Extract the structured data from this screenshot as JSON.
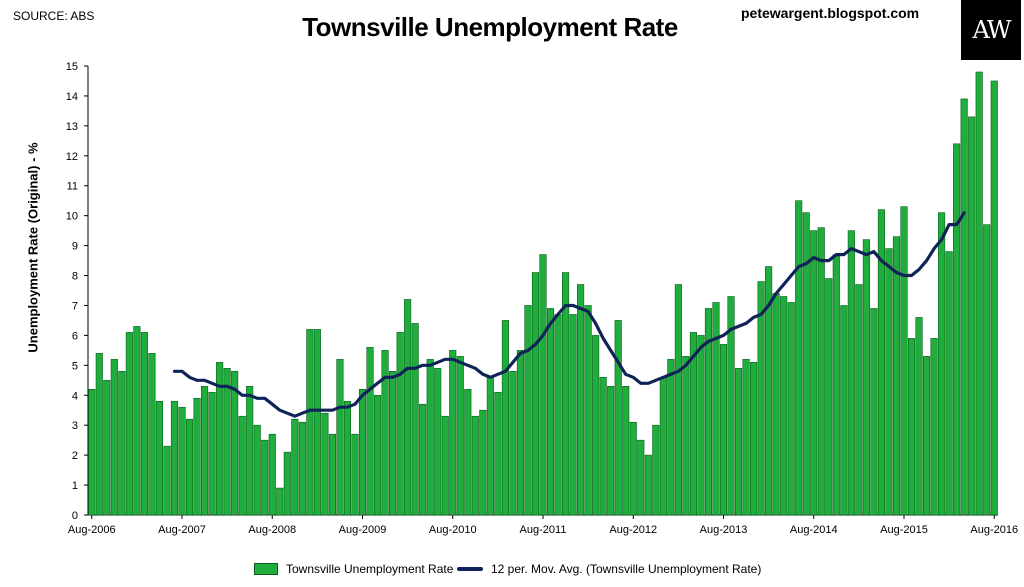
{
  "source": "SOURCE: ABS",
  "website": "petewargent.blogspot.com",
  "logo_text": "AW",
  "chart_data": {
    "type": "bar",
    "title": "Townsville Unemployment Rate",
    "ylabel": "Unemployment Rate (Original) - %",
    "xlabel": "",
    "ylim": [
      0,
      15
    ],
    "yticks": [
      0,
      1,
      2,
      3,
      4,
      5,
      6,
      7,
      8,
      9,
      10,
      11,
      12,
      13,
      14,
      15
    ],
    "xtick_labels": [
      "Aug-2006",
      "Aug-2007",
      "Aug-2008",
      "Aug-2009",
      "Aug-2010",
      "Aug-2011",
      "Aug-2012",
      "Aug-2013",
      "Aug-2014",
      "Aug-2015",
      "Aug-2016"
    ],
    "legend_position": "bottom",
    "grid": false,
    "colors": {
      "bars": "#1fad3c",
      "bar_edge": "#0b5e1f",
      "line": "#0f2358"
    },
    "series": [
      {
        "name": "Townsville Unemployment Rate",
        "type": "bar",
        "values": [
          4.2,
          5.4,
          4.5,
          5.2,
          4.8,
          6.1,
          6.3,
          6.1,
          5.4,
          3.8,
          2.3,
          3.8,
          3.6,
          3.2,
          3.9,
          4.3,
          4.1,
          5.1,
          4.9,
          4.8,
          3.3,
          4.3,
          3.0,
          2.5,
          2.7,
          0.9,
          2.1,
          3.2,
          3.1,
          6.2,
          6.2,
          3.4,
          2.7,
          5.2,
          3.8,
          2.7,
          4.2,
          5.6,
          4.0,
          5.5,
          4.8,
          6.1,
          7.2,
          6.4,
          3.7,
          5.2,
          4.9,
          3.3,
          5.5,
          5.3,
          4.2,
          3.3,
          3.5,
          4.6,
          4.1,
          6.5,
          4.8,
          5.5,
          7.0,
          8.1,
          8.7,
          6.9,
          6.7,
          8.1,
          6.7,
          7.7,
          7.0,
          6.0,
          4.6,
          4.3,
          6.5,
          4.3,
          3.1,
          2.5,
          2.0,
          3.0,
          4.6,
          5.2,
          7.7,
          5.3,
          6.1,
          6.0,
          6.9,
          7.1,
          5.7,
          7.3,
          4.9,
          5.2,
          5.1,
          7.8,
          8.3,
          7.4,
          7.3,
          7.1,
          10.5,
          10.1,
          9.5,
          9.6,
          7.9,
          8.7,
          7.0,
          9.5,
          7.7,
          9.2,
          6.9,
          10.2,
          8.9,
          9.3,
          10.3,
          5.9,
          6.6,
          5.3,
          5.9,
          10.1,
          8.8,
          12.4,
          13.9,
          13.3,
          14.8,
          9.7,
          14.5
        ],
        "x_start": "Aug-2006",
        "x_end": "Aug-2016",
        "x_step": "month"
      },
      {
        "name": "12 per. Mov. Avg. (Townsville Unemployment Rate)",
        "type": "line",
        "start_index": 11,
        "values": [
          4.8,
          4.8,
          4.6,
          4.5,
          4.5,
          4.4,
          4.3,
          4.3,
          4.2,
          4.0,
          4.0,
          3.9,
          3.9,
          3.7,
          3.5,
          3.4,
          3.3,
          3.4,
          3.5,
          3.5,
          3.5,
          3.5,
          3.6,
          3.6,
          3.7,
          4.0,
          4.2,
          4.4,
          4.6,
          4.6,
          4.7,
          4.9,
          4.9,
          5.0,
          5.0,
          5.1,
          5.2,
          5.2,
          5.1,
          5.0,
          4.9,
          4.7,
          4.6,
          4.7,
          4.8,
          5.1,
          5.4,
          5.5,
          5.7,
          6.0,
          6.4,
          6.7,
          7.0,
          7.0,
          6.9,
          6.8,
          6.4,
          5.9,
          5.5,
          5.1,
          4.7,
          4.6,
          4.4,
          4.4,
          4.5,
          4.6,
          4.7,
          4.8,
          5.0,
          5.3,
          5.6,
          5.8,
          5.9,
          6.0,
          6.2,
          6.3,
          6.4,
          6.6,
          6.7,
          7.0,
          7.4,
          7.7,
          8.0,
          8.3,
          8.4,
          8.6,
          8.5,
          8.5,
          8.7,
          8.7,
          8.9,
          8.8,
          8.7,
          8.8,
          8.5,
          8.3,
          8.1,
          8.0,
          8.0,
          8.2,
          8.5,
          8.9,
          9.2,
          9.7,
          9.7,
          10.1
        ]
      }
    ]
  }
}
